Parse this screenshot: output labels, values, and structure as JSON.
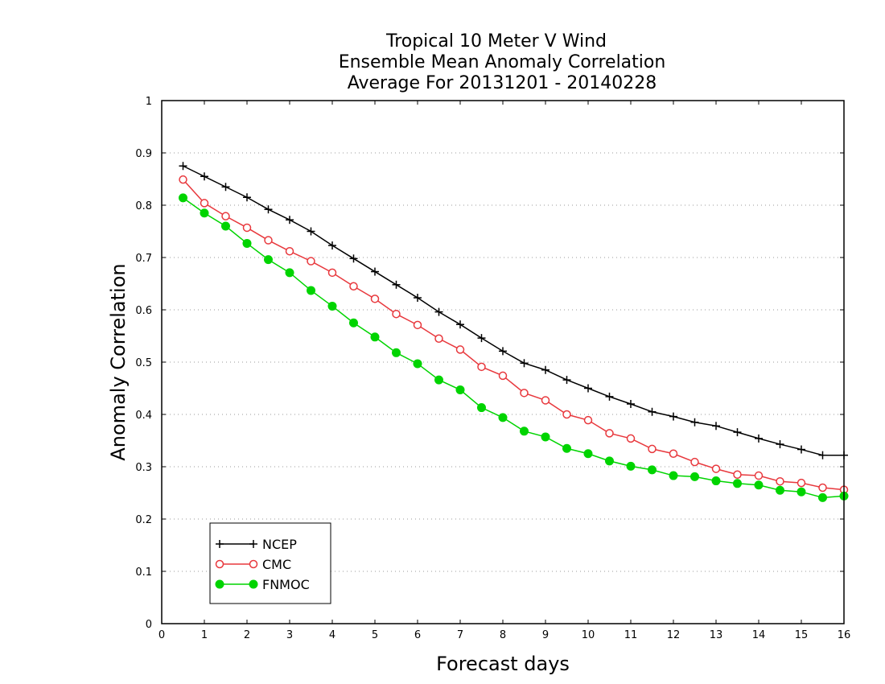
{
  "chart_data": {
    "type": "line",
    "title": [
      "Tropical 10 Meter V Wind",
      "Ensemble Mean Anomaly Correlation",
      "Average For 20131201 - 20140228"
    ],
    "xlabel": "Forecast days",
    "ylabel": "Anomaly Correlation",
    "xlim": [
      0,
      16
    ],
    "ylim": [
      0,
      1
    ],
    "xticks": [
      "0",
      "1",
      "2",
      "3",
      "4",
      "5",
      "6",
      "7",
      "8",
      "9",
      "10",
      "11",
      "12",
      "13",
      "14",
      "15",
      "16"
    ],
    "yticks": [
      "0",
      "0.1",
      "0.2",
      "0.3",
      "0.4",
      "0.5",
      "0.6",
      "0.7",
      "0.8",
      "0.9",
      "1"
    ],
    "grid": "dotted horizontal",
    "legend_position": "bottom-left",
    "x": [
      0.5,
      1,
      1.5,
      2,
      2.5,
      3,
      3.5,
      4,
      4.5,
      5,
      5.5,
      6,
      6.5,
      7,
      7.5,
      8,
      8.5,
      9,
      9.5,
      10,
      10.5,
      11,
      11.5,
      12,
      12.5,
      13,
      13.5,
      14,
      14.5,
      15,
      15.5,
      16
    ],
    "series": [
      {
        "name": "NCEP",
        "color": "#000000",
        "marker": "plus",
        "values": [
          0.875,
          0.855,
          0.835,
          0.815,
          0.792,
          0.772,
          0.75,
          0.723,
          0.698,
          0.673,
          0.648,
          0.623,
          0.596,
          0.572,
          0.546,
          0.521,
          0.498,
          0.485,
          0.466,
          0.45,
          0.434,
          0.42,
          0.405,
          0.396,
          0.385,
          0.378,
          0.366,
          0.354,
          0.343,
          0.333,
          0.322,
          0.322
        ]
      },
      {
        "name": "CMC",
        "color": "#e8383d",
        "marker": "open-circle",
        "values": [
          0.849,
          0.804,
          0.779,
          0.757,
          0.733,
          0.712,
          0.693,
          0.671,
          0.645,
          0.621,
          0.592,
          0.571,
          0.545,
          0.524,
          0.491,
          0.474,
          0.441,
          0.427,
          0.4,
          0.389,
          0.364,
          0.354,
          0.334,
          0.325,
          0.309,
          0.296,
          0.285,
          0.283,
          0.272,
          0.269,
          0.26,
          0.256
        ]
      },
      {
        "name": "FNMOC",
        "color": "#00d400",
        "marker": "filled-circle",
        "values": [
          0.814,
          0.785,
          0.76,
          0.727,
          0.696,
          0.671,
          0.637,
          0.607,
          0.575,
          0.548,
          0.518,
          0.497,
          0.466,
          0.447,
          0.413,
          0.394,
          0.368,
          0.357,
          0.335,
          0.325,
          0.311,
          0.301,
          0.294,
          0.283,
          0.281,
          0.273,
          0.268,
          0.265,
          0.255,
          0.252,
          0.241,
          0.244
        ]
      }
    ]
  }
}
